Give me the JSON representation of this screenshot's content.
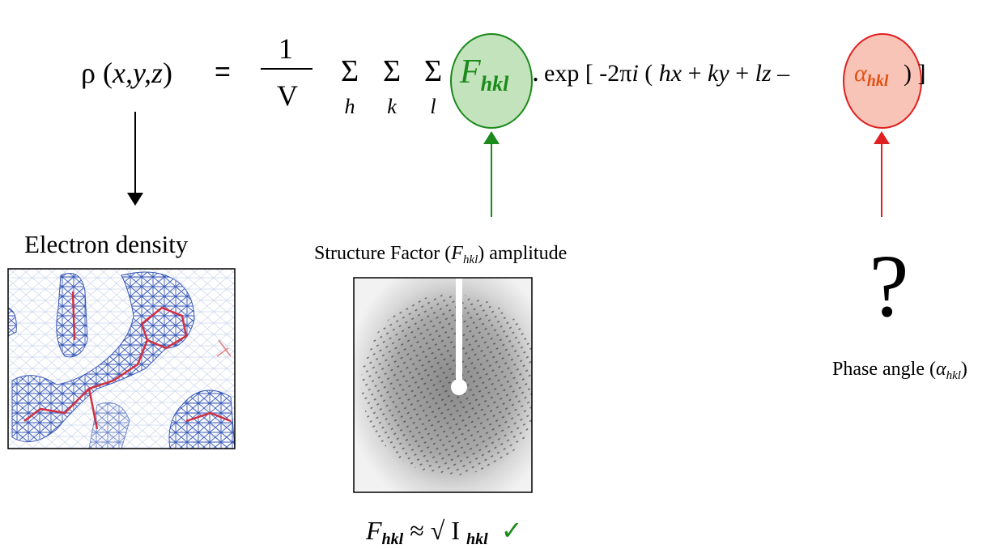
{
  "equation": {
    "rho": "ρ",
    "open": "(",
    "vars": "x,y,z",
    "close": ")",
    "equals": "=",
    "numerator": "1",
    "denominator": "V",
    "sums": [
      {
        "symbol": "Σ",
        "index": "h"
      },
      {
        "symbol": "Σ",
        "index": "k"
      },
      {
        "symbol": "Σ",
        "index": "l"
      }
    ],
    "amplitude": {
      "symbol": "F",
      "subscript": "hkl"
    },
    "dot": ".",
    "exponent_parts": [
      "exp [ -2π",
      "i",
      " ( ",
      "hx",
      " + ",
      "ky",
      " + ",
      "lz",
      " –"
    ],
    "phase": {
      "symbol": "α",
      "subscript": "hkl"
    },
    "closing": ") ]"
  },
  "labels": {
    "electron_density": "Electron density",
    "structure_factor": {
      "before": "Structure Factor (",
      "symbol": "F",
      "subscript": "hkl",
      "after": ") amplitude"
    },
    "question": "?",
    "phase_angle": {
      "before": "Phase angle (",
      "symbol": "α",
      "subscript": "hkl",
      "after": ")"
    },
    "relation": {
      "symbol": "F",
      "subscript": "hkl",
      "approx": "≈",
      "root": "√",
      "intensity": "I",
      "intensity_subscript": "hkl",
      "check": "✓"
    }
  }
}
